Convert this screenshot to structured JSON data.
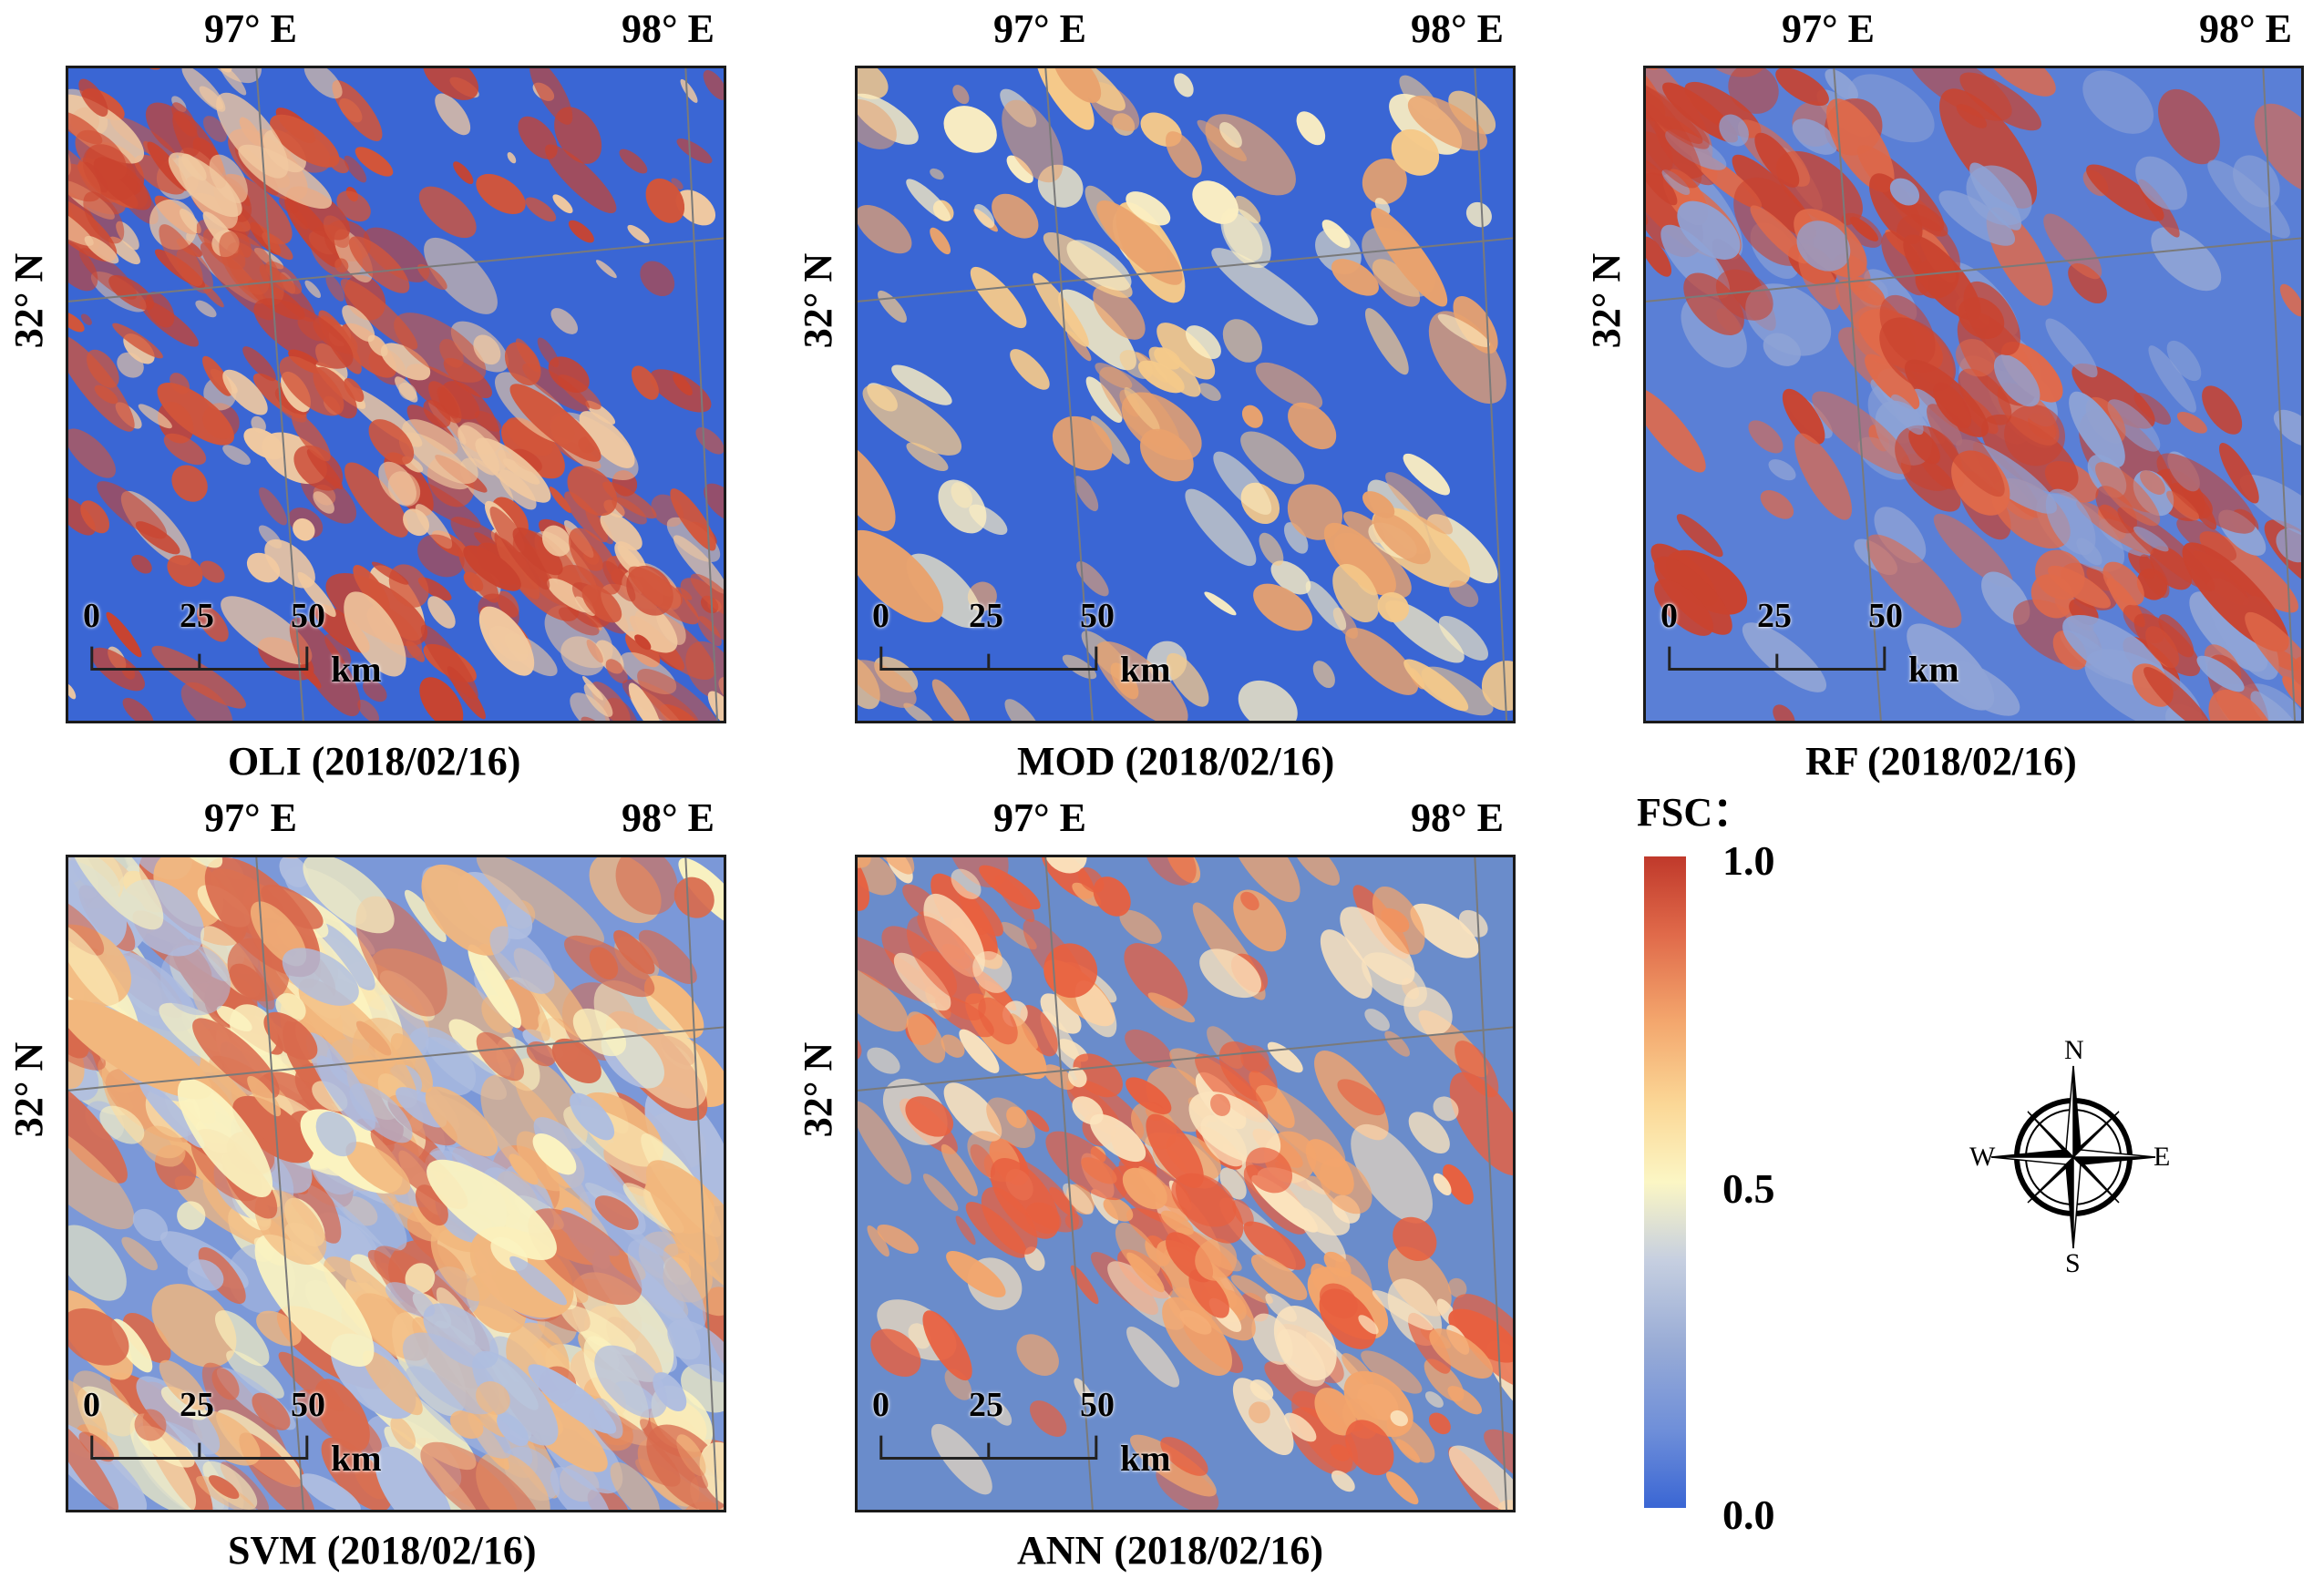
{
  "panels": [
    {
      "id": "oli",
      "caption": "OLI (2018/02/16)",
      "lon_left": "97° E",
      "lon_right": "98° E",
      "lat": "32° N",
      "scale": [
        "0",
        "25",
        "50"
      ],
      "unit": "km",
      "palette": "oli"
    },
    {
      "id": "mod",
      "caption": "MOD (2018/02/16)",
      "lon_left": "97° E",
      "lon_right": "98° E",
      "lat": "32° N",
      "scale": [
        "0",
        "25",
        "50"
      ],
      "unit": "km",
      "palette": "mod"
    },
    {
      "id": "rf",
      "caption": "RF (2018/02/16)",
      "lon_left": "97° E",
      "lon_right": "98° E",
      "lat": "32° N",
      "scale": [
        "0",
        "25",
        "50"
      ],
      "unit": "km",
      "palette": "rf"
    },
    {
      "id": "svm",
      "caption": "SVM (2018/02/16)",
      "lon_left": "97° E",
      "lon_right": "98° E",
      "lat": "32° N",
      "scale": [
        "0",
        "25",
        "50"
      ],
      "unit": "km",
      "palette": "svm"
    },
    {
      "id": "ann",
      "caption": "ANN (2018/02/16)",
      "lon_left": "97° E",
      "lon_right": "98° E",
      "lat": "32° N",
      "scale": [
        "0",
        "25",
        "50"
      ],
      "unit": "km",
      "palette": "ann"
    }
  ],
  "legend": {
    "title": "FSC：",
    "ticks": [
      "1.0",
      "0.5",
      "0.0"
    ],
    "colors": [
      "#c0392b",
      "#f3a56c",
      "#fbf6c4",
      "#99acd6",
      "#3a66d4"
    ]
  },
  "compass": {
    "n": "N",
    "s": "S",
    "e": "E",
    "w": "W"
  }
}
